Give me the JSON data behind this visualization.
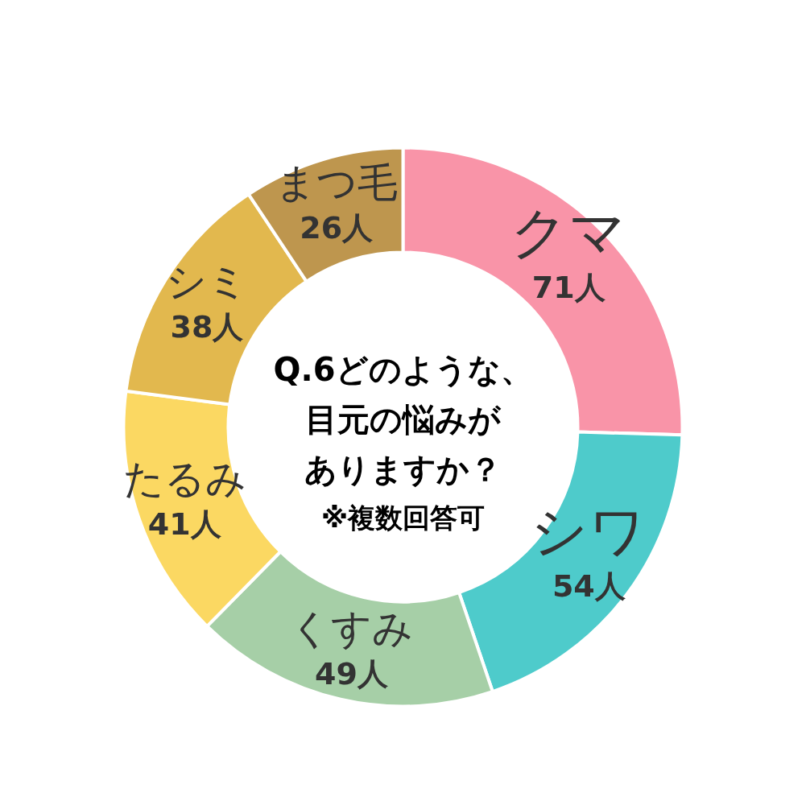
{
  "chart_data": {
    "type": "donut",
    "title": "Q.6どのような、目元の悩みがありますか？",
    "annotations": [
      "※複数回答可"
    ],
    "categories": [
      "クマ",
      "シワ",
      "くすみ",
      "たるみ",
      "シミ",
      "まつ毛"
    ],
    "values": [
      71,
      54,
      49,
      41,
      38,
      26
    ],
    "colors": [
      "#f994a8",
      "#4ecbcb",
      "#a6cfa7",
      "#fbd862",
      "#e2b84e",
      "#be964e"
    ],
    "value_labels": [
      "71人",
      "54人",
      "49人",
      "41人",
      "38人",
      "26人"
    ],
    "legend": false
  }
}
